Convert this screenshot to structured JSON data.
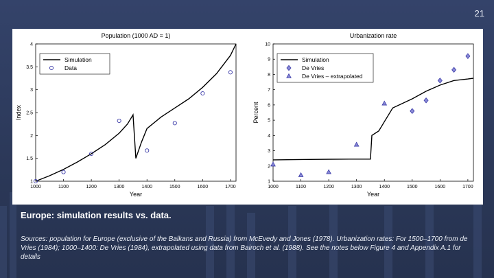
{
  "slide": {
    "number": "21",
    "caption_title": "Europe: simulation results vs. data.",
    "caption_sources": "Sources: population for Europe (exclusive of the Balkans and Russia) from McEvedy and Jones (1978). Urbanization rates: For 1500–1700 from de Vries (1984); 1000–1400: De Vries (1984), extrapolated using data from Bairoch et al. (1988). See the notes below Figure 4 and Appendix A.1 for details"
  },
  "chart_data": [
    {
      "type": "line",
      "title": "Population (1000 AD = 1)",
      "xlabel": "Year",
      "ylabel": "Index",
      "xlim": [
        1000,
        1720
      ],
      "ylim": [
        1,
        4
      ],
      "xticks": [
        "1000",
        "1100",
        "1200",
        "1300",
        "1400",
        "1500",
        "1600",
        "1700"
      ],
      "yticks": [
        "1",
        "1.5",
        "2",
        "2.5",
        "3",
        "3.5",
        "4"
      ],
      "legend_position": "upper-left",
      "series": [
        {
          "name": "Simulation",
          "style": "line",
          "x": [
            1000,
            1050,
            1100,
            1150,
            1200,
            1250,
            1300,
            1330,
            1350,
            1360,
            1380,
            1400,
            1450,
            1500,
            1550,
            1600,
            1650,
            1700,
            1720
          ],
          "y": [
            1.0,
            1.12,
            1.26,
            1.42,
            1.6,
            1.8,
            2.05,
            2.25,
            2.45,
            1.5,
            1.85,
            2.15,
            2.4,
            2.6,
            2.8,
            3.05,
            3.35,
            3.75,
            4.0
          ]
        },
        {
          "name": "Data",
          "style": "circle",
          "x": [
            1000,
            1100,
            1200,
            1300,
            1400,
            1500,
            1600,
            1700
          ],
          "y": [
            1.0,
            1.2,
            1.6,
            2.32,
            1.67,
            2.27,
            2.92,
            3.38
          ]
        }
      ]
    },
    {
      "type": "line",
      "title": "Urbanization rate",
      "xlabel": "Year",
      "ylabel": "Percent",
      "xlim": [
        1000,
        1720
      ],
      "ylim": [
        1,
        10
      ],
      "xticks": [
        "1000",
        "1100",
        "1200",
        "1300",
        "1400",
        "1500",
        "1600",
        "1700"
      ],
      "yticks": [
        "1",
        "2",
        "3",
        "4",
        "5",
        "6",
        "7",
        "8",
        "9",
        "10"
      ],
      "legend_position": "upper-left",
      "series": [
        {
          "name": "Simulation",
          "style": "line",
          "x": [
            1000,
            1100,
            1200,
            1300,
            1350,
            1355,
            1380,
            1400,
            1430,
            1500,
            1550,
            1600,
            1650,
            1700,
            1720
          ],
          "y": [
            2.4,
            2.42,
            2.44,
            2.45,
            2.45,
            4.0,
            4.3,
            4.9,
            5.8,
            6.4,
            6.9,
            7.3,
            7.6,
            7.7,
            7.75
          ]
        },
        {
          "name": "De Vries",
          "style": "diamond",
          "x": [
            1500,
            1550,
            1600,
            1650,
            1700
          ],
          "y": [
            5.6,
            6.3,
            7.6,
            8.3,
            9.2
          ]
        },
        {
          "name": "De Vries – extrapolated",
          "style": "triangle",
          "x": [
            1000,
            1100,
            1200,
            1300,
            1400
          ],
          "y": [
            2.1,
            1.4,
            1.6,
            3.4,
            6.1
          ]
        }
      ]
    }
  ]
}
